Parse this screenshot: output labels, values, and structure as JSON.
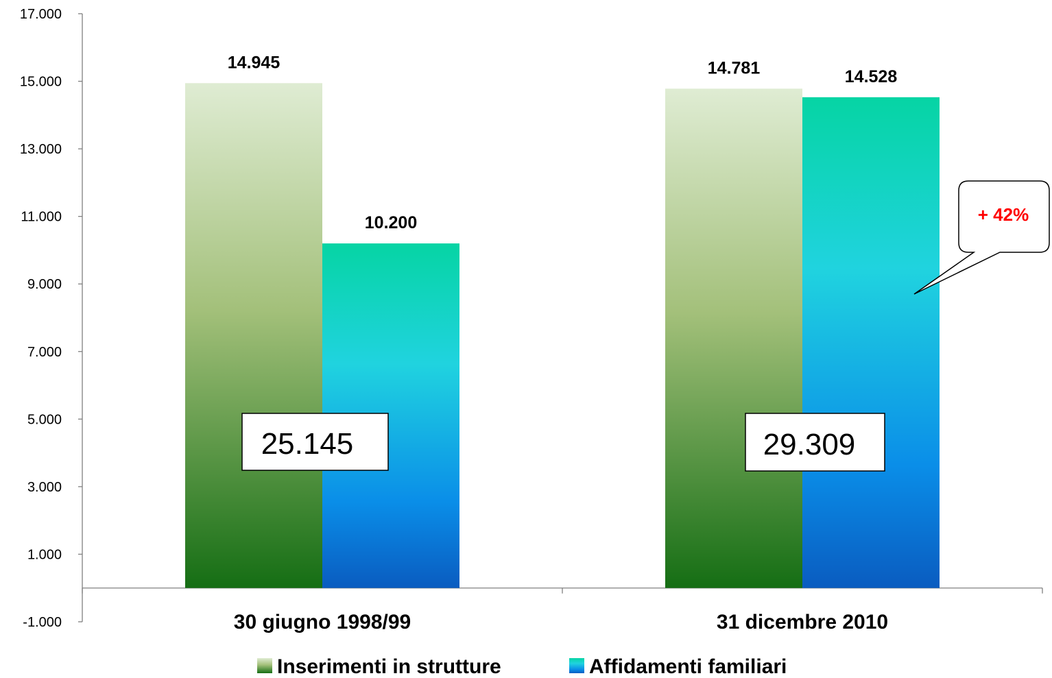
{
  "chart_data": {
    "type": "bar",
    "categories": [
      "30 giugno 1998/99",
      "31 dicembre 2010"
    ],
    "series": [
      {
        "name": "Inserimenti in strutture",
        "values": [
          14945,
          14781
        ],
        "labels": [
          "14.945",
          "14.781"
        ]
      },
      {
        "name": "Affidamenti familiari",
        "values": [
          10200,
          14528
        ],
        "labels": [
          "10.200",
          "14.528"
        ]
      }
    ],
    "ylim": [
      -1000,
      17000
    ],
    "yticks": [
      17000,
      15000,
      13000,
      11000,
      9000,
      7000,
      5000,
      3000,
      1000,
      -1000
    ],
    "ytick_labels": [
      "17.000",
      "15.000",
      "13.000",
      "11.000",
      "9.000",
      "7.000",
      "5.000",
      "3.000",
      "1.000",
      "-1.000"
    ],
    "totals": [
      "25.145",
      "29.309"
    ],
    "annotation": "+ 42%",
    "grid": false,
    "legend": "bottom",
    "colors": {
      "series1_top": "#dcebd0",
      "series1_mid": "#9bbb6e",
      "series1_bottom": "#177017",
      "series2_top": "#08d6a8",
      "series2_mid": "#1fd2e0",
      "series2_low": "#0a8ee6",
      "series2_bottom": "#0a5fc4",
      "callout_text": "#ff0000"
    }
  }
}
